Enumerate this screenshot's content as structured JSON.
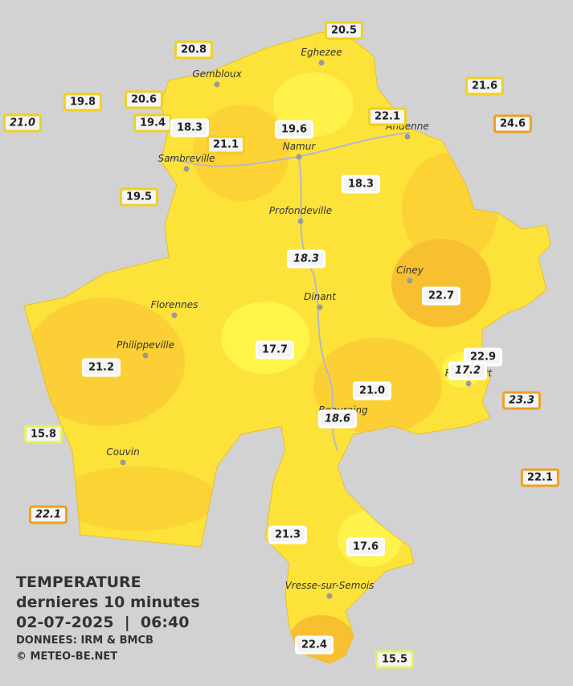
{
  "legend": {
    "title": "TEMPERATURE",
    "subtitle": "dernieres 10 minutes",
    "datetime": "02-07-2025  |  06:40",
    "source": "DONNEES: IRM & BMCB",
    "credit": "© METEO-BE.NET"
  },
  "cities": [
    "Eghezee",
    "Gembloux",
    "Andenne",
    "Namur",
    "Sambreville",
    "Profondeville",
    "Ciney",
    "Dinant",
    "Florennes",
    "Philippeville",
    "Rochefort",
    "Beauraing",
    "Couvin",
    "Vresse-sur-Semois"
  ],
  "stations": [
    "20.5",
    "20.8",
    "21.6",
    "19.8",
    "20.6",
    "22.1",
    "21.0",
    "24.6",
    "19.4",
    "18.3",
    "19.6",
    "21.1",
    "18.3",
    "19.5",
    "18.3",
    "22.7",
    "17.7",
    "22.9",
    "17.2",
    "21.2",
    "21.0",
    "23.3",
    "18.6",
    "15.8",
    "22.1",
    "22.1",
    "21.3",
    "17.6",
    "22.4",
    "15.5"
  ]
}
